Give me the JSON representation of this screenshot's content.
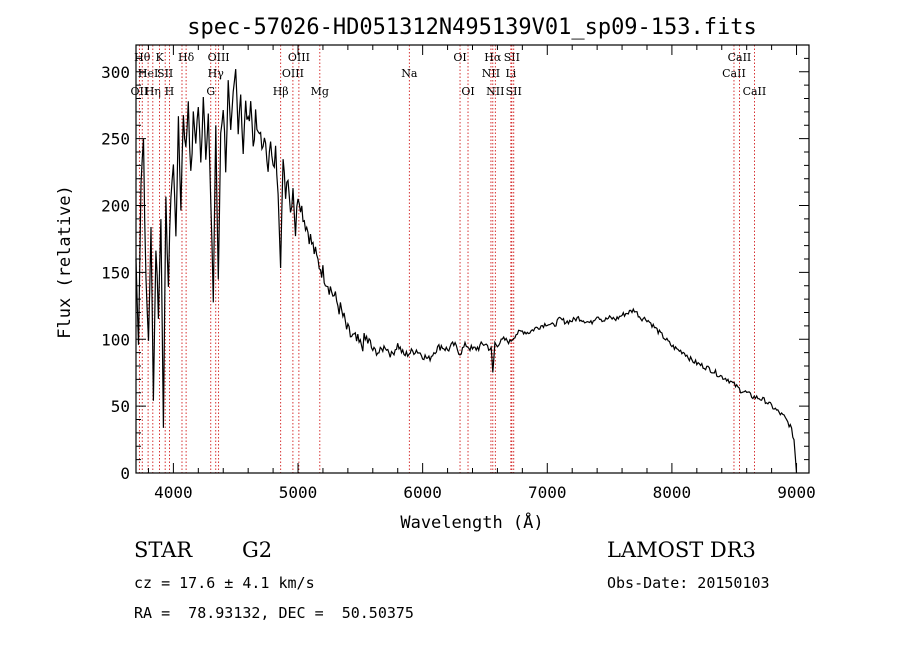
{
  "chart_data": {
    "type": "line",
    "title": "spec-57026-HD051312N495139V01_sp09-153.fits",
    "xlabel": "Wavelength (Å)",
    "ylabel": "Flux (relative)",
    "xlim": [
      3700,
      9100
    ],
    "ylim": [
      0,
      320
    ],
    "xticks": [
      4000,
      5000,
      6000,
      7000,
      8000,
      9000
    ],
    "yticks": [
      0,
      50,
      100,
      150,
      200,
      250,
      300
    ],
    "line_color": "#000000",
    "marker_color": "#cc0000",
    "series": [
      {
        "name": "flux",
        "x": [
          3700,
          3720,
          3740,
          3760,
          3780,
          3800,
          3820,
          3840,
          3860,
          3880,
          3900,
          3920,
          3940,
          3960,
          3980,
          4000,
          4020,
          4040,
          4060,
          4080,
          4100,
          4120,
          4140,
          4160,
          4180,
          4200,
          4220,
          4240,
          4260,
          4280,
          4300,
          4320,
          4340,
          4360,
          4380,
          4400,
          4420,
          4440,
          4460,
          4480,
          4500,
          4520,
          4540,
          4560,
          4580,
          4600,
          4620,
          4640,
          4660,
          4680,
          4700,
          4720,
          4740,
          4760,
          4780,
          4800,
          4820,
          4840,
          4860,
          4880,
          4900,
          4920,
          4940,
          4960,
          4980,
          5000,
          5050,
          5100,
          5150,
          5200,
          5250,
          5300,
          5350,
          5400,
          5450,
          5500,
          5550,
          5600,
          5650,
          5700,
          5750,
          5800,
          5850,
          5900,
          5950,
          6000,
          6050,
          6100,
          6150,
          6200,
          6250,
          6300,
          6350,
          6400,
          6450,
          6500,
          6550,
          6563,
          6580,
          6600,
          6650,
          6700,
          6750,
          6800,
          6850,
          6900,
          6950,
          7000,
          7050,
          7100,
          7150,
          7200,
          7250,
          7300,
          7350,
          7400,
          7450,
          7500,
          7550,
          7600,
          7650,
          7700,
          7750,
          7800,
          7850,
          7900,
          7950,
          8000,
          8050,
          8100,
          8150,
          8200,
          8250,
          8300,
          8350,
          8400,
          8450,
          8500,
          8550,
          8600,
          8650,
          8700,
          8750,
          8800,
          8850,
          8900,
          8950,
          8980,
          9000
        ],
        "values": [
          160,
          95,
          220,
          250,
          140,
          100,
          180,
          60,
          170,
          120,
          190,
          40,
          200,
          140,
          210,
          230,
          180,
          260,
          200,
          270,
          240,
          280,
          220,
          265,
          250,
          275,
          230,
          285,
          240,
          270,
          200,
          130,
          260,
          140,
          255,
          275,
          230,
          290,
          250,
          280,
          300,
          260,
          285,
          240,
          275,
          260,
          280,
          245,
          265,
          250,
          255,
          240,
          250,
          230,
          245,
          225,
          240,
          215,
          160,
          230,
          210,
          225,
          195,
          215,
          180,
          210,
          190,
          175,
          160,
          150,
          140,
          130,
          120,
          105,
          100,
          95,
          100,
          92,
          90,
          95,
          88,
          96,
          88,
          90,
          92,
          88,
          85,
          92,
          95,
          92,
          96,
          90,
          96,
          92,
          94,
          97,
          92,
          75,
          97,
          96,
          100,
          98,
          104,
          106,
          105,
          108,
          110,
          112,
          110,
          115,
          113,
          114,
          116,
          114,
          112,
          118,
          114,
          116,
          115,
          118,
          120,
          122,
          116,
          115,
          110,
          105,
          100,
          95,
          92,
          90,
          85,
          82,
          80,
          78,
          75,
          72,
          70,
          66,
          62,
          60,
          57,
          56,
          54,
          50,
          46,
          42,
          35,
          25,
          0
        ]
      }
    ],
    "markers": [
      {
        "wavelength": 3750,
        "label": "Hθ",
        "row": 1
      },
      {
        "wavelength": 3727,
        "label": "OII",
        "row": 3
      },
      {
        "wavelength": 3797,
        "label": "HeI",
        "row": 2
      },
      {
        "wavelength": 3835,
        "label": "Hη",
        "row": 3
      },
      {
        "wavelength": 3889,
        "label": "K",
        "row": 1
      },
      {
        "wavelength": 3934,
        "label": "SII",
        "row": 2
      },
      {
        "wavelength": 3968,
        "label": "H",
        "row": 3
      },
      {
        "wavelength": 4102,
        "label": "Hδ",
        "row": 1
      },
      {
        "wavelength": 4069,
        "label": "",
        "row": 0
      },
      {
        "wavelength": 4300,
        "label": "G",
        "row": 3
      },
      {
        "wavelength": 4340,
        "label": "Hγ",
        "row": 2
      },
      {
        "wavelength": 4363,
        "label": "OIII",
        "row": 1
      },
      {
        "wavelength": 4861,
        "label": "Hβ",
        "row": 3
      },
      {
        "wavelength": 4959,
        "label": "OIII",
        "row": 2
      },
      {
        "wavelength": 5007,
        "label": "OIII",
        "row": 1
      },
      {
        "wavelength": 5175,
        "label": "Mg",
        "row": 3
      },
      {
        "wavelength": 5893,
        "label": "Na",
        "row": 2
      },
      {
        "wavelength": 6300,
        "label": "OI",
        "row": 1
      },
      {
        "wavelength": 6364,
        "label": "OI",
        "row": 3
      },
      {
        "wavelength": 6548,
        "label": "NII",
        "row": 2
      },
      {
        "wavelength": 6563,
        "label": "Hα",
        "row": 1
      },
      {
        "wavelength": 6583,
        "label": "NII",
        "row": 3
      },
      {
        "wavelength": 6708,
        "label": "Li",
        "row": 2
      },
      {
        "wavelength": 6716,
        "label": "SII",
        "row": 1
      },
      {
        "wavelength": 6731,
        "label": "SII",
        "row": 3
      },
      {
        "wavelength": 8498,
        "label": "CaII",
        "row": 2
      },
      {
        "wavelength": 8542,
        "label": "CaII",
        "row": 1
      },
      {
        "wavelength": 8662,
        "label": "CaII",
        "row": 3
      }
    ]
  },
  "info": {
    "object_class": "STAR",
    "subclass": "G2",
    "redshift": "cz = 17.6 ± 4.1 km/s",
    "coords": "RA =  78.93132, DEC =  50.50375",
    "survey": "LAMOST DR3",
    "obs_date": "Obs-Date: 20150103"
  }
}
